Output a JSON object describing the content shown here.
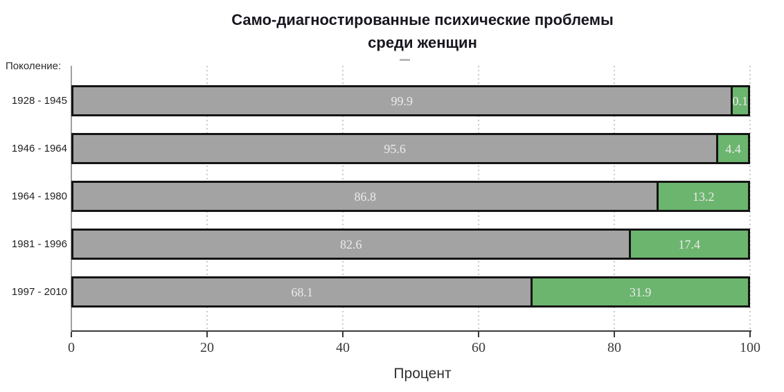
{
  "title": {
    "line1": "Само-диагностированные психические проблемы",
    "line2": "среди женщин"
  },
  "y_axis_title": "Поколение:",
  "x_axis_title": "Процент",
  "colors": {
    "gray_segment": "#a3a3a3",
    "green_segment": "#6cb56f",
    "bar_border": "#141414",
    "bar_label_text": "#ebebeb",
    "axis": "#3a3a3a",
    "gridline": "#c9c9c9"
  },
  "chart_data": {
    "type": "bar",
    "orientation": "horizontal",
    "stacked": true,
    "title": "Само-диагностированные психические проблемы среди женщин",
    "categories": [
      "1928 - 1945",
      "1946 - 1964",
      "1964 - 1980",
      "1981 - 1996",
      "1997 - 2010"
    ],
    "series": [
      {
        "name": "gray_segment",
        "color": "#a3a3a3",
        "values": [
          99.9,
          95.6,
          86.8,
          82.6,
          68.1
        ],
        "labels": [
          "99.9",
          "95.6",
          "86.8",
          "82.6",
          "68.1"
        ]
      },
      {
        "name": "green_segment",
        "color": "#6cb56f",
        "values": [
          0.1,
          4.4,
          13.2,
          17.4,
          31.9
        ],
        "labels": [
          "0.1",
          "4.4",
          "13.2",
          "17.4",
          "31.9"
        ]
      }
    ],
    "xlabel": "Процент",
    "ylabel": "Поколение:",
    "xlim": [
      0,
      100
    ],
    "x_ticks": [
      0,
      20,
      40,
      60,
      80,
      100
    ],
    "grid": "vertical-dotted",
    "value_labels": "inside-segments"
  }
}
